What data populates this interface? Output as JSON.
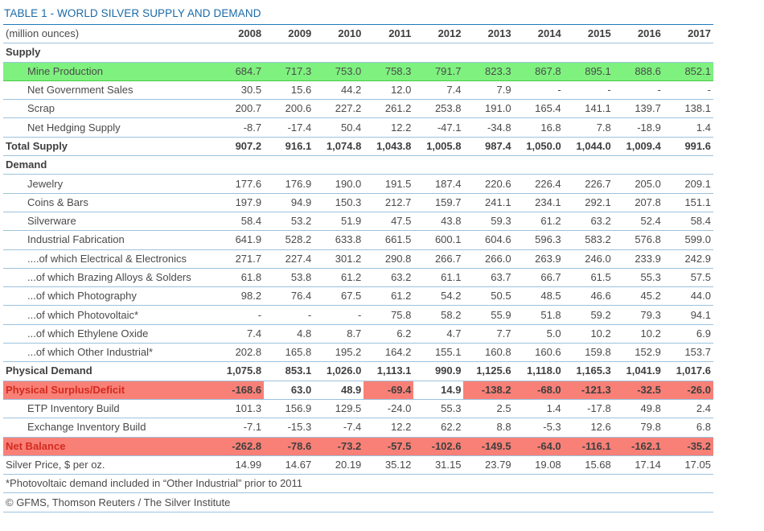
{
  "title": "TABLE 1 - WORLD SILVER SUPPLY AND DEMAND",
  "header": {
    "label": "(million ounces)",
    "years": [
      "2008",
      "2009",
      "2010",
      "2011",
      "2012",
      "2013",
      "2014",
      "2015",
      "2016",
      "2017"
    ]
  },
  "rows": {
    "supply_section": "Supply",
    "mine_production": {
      "label": "Mine Production",
      "values": [
        "684.7",
        "717.3",
        "753.0",
        "758.3",
        "791.7",
        "823.3",
        "867.8",
        "895.1",
        "888.6",
        "852.1"
      ]
    },
    "net_government_sales": {
      "label": "Net Government Sales",
      "values": [
        "30.5",
        "15.6",
        "44.2",
        "12.0",
        "7.4",
        "7.9",
        "-",
        "-",
        "-",
        "-"
      ]
    },
    "scrap": {
      "label": "Scrap",
      "values": [
        "200.7",
        "200.6",
        "227.2",
        "261.2",
        "253.8",
        "191.0",
        "165.4",
        "141.1",
        "139.7",
        "138.1"
      ]
    },
    "net_hedging_supply": {
      "label": "Net Hedging Supply",
      "values": [
        "-8.7",
        "-17.4",
        "50.4",
        "12.2",
        "-47.1",
        "-34.8",
        "16.8",
        "7.8",
        "-18.9",
        "1.4"
      ]
    },
    "total_supply": {
      "label": "Total Supply",
      "values": [
        "907.2",
        "916.1",
        "1,074.8",
        "1,043.8",
        "1,005.8",
        "987.4",
        "1,050.0",
        "1,044.0",
        "1,009.4",
        "991.6"
      ]
    },
    "demand_section": "Demand",
    "jewelry": {
      "label": "Jewelry",
      "values": [
        "177.6",
        "176.9",
        "190.0",
        "191.5",
        "187.4",
        "220.6",
        "226.4",
        "226.7",
        "205.0",
        "209.1"
      ]
    },
    "coins_bars": {
      "label": "Coins & Bars",
      "values": [
        "197.9",
        "94.9",
        "150.3",
        "212.7",
        "159.7",
        "241.1",
        "234.1",
        "292.1",
        "207.8",
        "151.1"
      ]
    },
    "silverware": {
      "label": "Silverware",
      "values": [
        "58.4",
        "53.2",
        "51.9",
        "47.5",
        "43.8",
        "59.3",
        "61.2",
        "63.2",
        "52.4",
        "58.4"
      ]
    },
    "industrial_fabrication": {
      "label": "Industrial Fabrication",
      "values": [
        "641.9",
        "528.2",
        "633.8",
        "661.5",
        "600.1",
        "604.6",
        "596.3",
        "583.2",
        "576.8",
        "599.0"
      ]
    },
    "electrical": {
      "label": "....of which Electrical & Electronics",
      "values": [
        "271.7",
        "227.4",
        "301.2",
        "290.8",
        "266.7",
        "266.0",
        "263.9",
        "246.0",
        "233.9",
        "242.9"
      ]
    },
    "brazing": {
      "label": "...of which Brazing Alloys & Solders",
      "values": [
        "61.8",
        "53.8",
        "61.2",
        "63.2",
        "61.1",
        "63.7",
        "66.7",
        "61.5",
        "55.3",
        "57.5"
      ]
    },
    "photography": {
      "label": "...of which Photography",
      "values": [
        "98.2",
        "76.4",
        "67.5",
        "61.2",
        "54.2",
        "50.5",
        "48.5",
        "46.6",
        "45.2",
        "44.0"
      ]
    },
    "photovoltaic": {
      "label": "...of which Photovoltaic*",
      "values": [
        "-",
        "-",
        "-",
        "75.8",
        "58.2",
        "55.9",
        "51.8",
        "59.2",
        "79.3",
        "94.1"
      ]
    },
    "ethylene_oxide": {
      "label": "...of which Ethylene Oxide",
      "values": [
        "7.4",
        "4.8",
        "8.7",
        "6.2",
        "4.7",
        "7.7",
        "5.0",
        "10.2",
        "10.2",
        "6.9"
      ]
    },
    "other_industrial": {
      "label": "...of which Other Industrial*",
      "values": [
        "202.8",
        "165.8",
        "195.2",
        "164.2",
        "155.1",
        "160.8",
        "160.6",
        "159.8",
        "152.9",
        "153.7"
      ]
    },
    "physical_demand": {
      "label": "Physical Demand",
      "values": [
        "1,075.8",
        "853.1",
        "1,026.0",
        "1,113.1",
        "990.9",
        "1,125.6",
        "1,118.0",
        "1,165.3",
        "1,041.9",
        "1,017.6"
      ]
    },
    "physical_surplus": {
      "label": "Physical Surplus/Deficit",
      "values": [
        "-168.6",
        "63.0",
        "48.9",
        "-69.4",
        "14.9",
        "-138.2",
        "-68.0",
        "-121.3",
        "-32.5",
        "-26.0"
      ]
    },
    "etp_inventory": {
      "label": "ETP Inventory Build",
      "values": [
        "101.3",
        "156.9",
        "129.5",
        "-24.0",
        "55.3",
        "2.5",
        "1.4",
        "-17.8",
        "49.8",
        "2.4"
      ]
    },
    "exchange_inventory": {
      "label": "Exchange Inventory Build",
      "values": [
        "-7.1",
        "-15.3",
        "-7.4",
        "12.2",
        "62.2",
        "8.8",
        "-5.3",
        "12.6",
        "79.8",
        "6.8"
      ]
    },
    "net_balance": {
      "label": "Net Balance",
      "values": [
        "-262.8",
        "-78.6",
        "-73.2",
        "-57.5",
        "-102.6",
        "-149.5",
        "-64.0",
        "-116.1",
        "-162.1",
        "-35.2"
      ]
    },
    "silver_price": {
      "label": "Silver Price, $ per oz.",
      "values": [
        "14.99",
        "14.67",
        "20.19",
        "35.12",
        "31.15",
        "23.79",
        "19.08",
        "15.68",
        "17.14",
        "17.05"
      ]
    }
  },
  "footnote": "*Photovoltaic demand included in “Other Industrial” prior to 2011",
  "source": "© GFMS, Thomson Reuters / The Silver Institute",
  "colors": {
    "title_blue": "#1a6aa8",
    "green_highlight": "#7ef17e",
    "red_highlight": "#f98077",
    "red_label": "#d42a1f"
  }
}
